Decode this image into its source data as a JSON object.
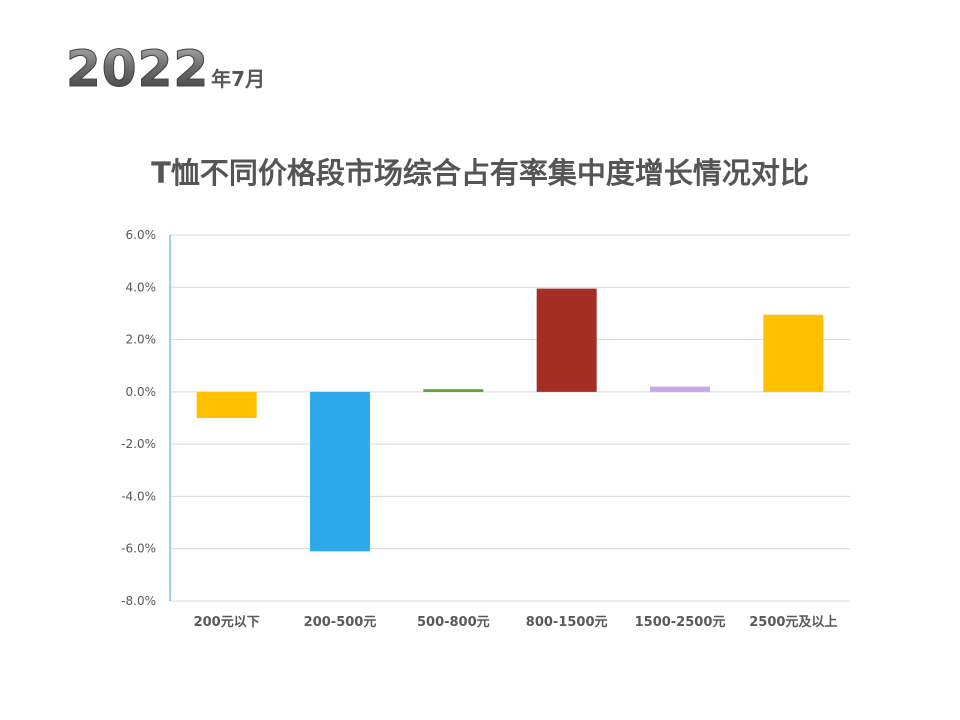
{
  "header": {
    "year": "2022",
    "month_text": "年7月"
  },
  "chart_data": {
    "type": "bar",
    "title": "T恤不同价格段市场综合占有率集中度增长情况对比",
    "xlabel": "",
    "ylabel": "",
    "categories": [
      "200元以下",
      "200-500元",
      "500-800元",
      "800-1500元",
      "1500-2500元",
      "2500元及以上"
    ],
    "values": [
      -1.0,
      -6.1,
      0.1,
      3.95,
      0.2,
      2.95
    ],
    "value_format": "percent_1dp",
    "ylim": [
      -8.0,
      6.0
    ],
    "yticks": [
      -8.0,
      -6.0,
      -4.0,
      -2.0,
      0.0,
      2.0,
      4.0,
      6.0
    ],
    "ytick_labels": [
      "-8.0%",
      "-6.0%",
      "-4.0%",
      "-2.0%",
      "0.0%",
      "2.0%",
      "4.0%",
      "6.0%"
    ],
    "grid": true,
    "legend": "none",
    "bar_colors": [
      "#FFC000",
      "#2EAAEA",
      "#5FA032",
      "#A52E24",
      "#C8A6E8",
      "#FFC000"
    ]
  },
  "colors": {
    "gridline": "#D9D9D9",
    "axis_line": "#2EAAEA",
    "text": "#595959"
  }
}
